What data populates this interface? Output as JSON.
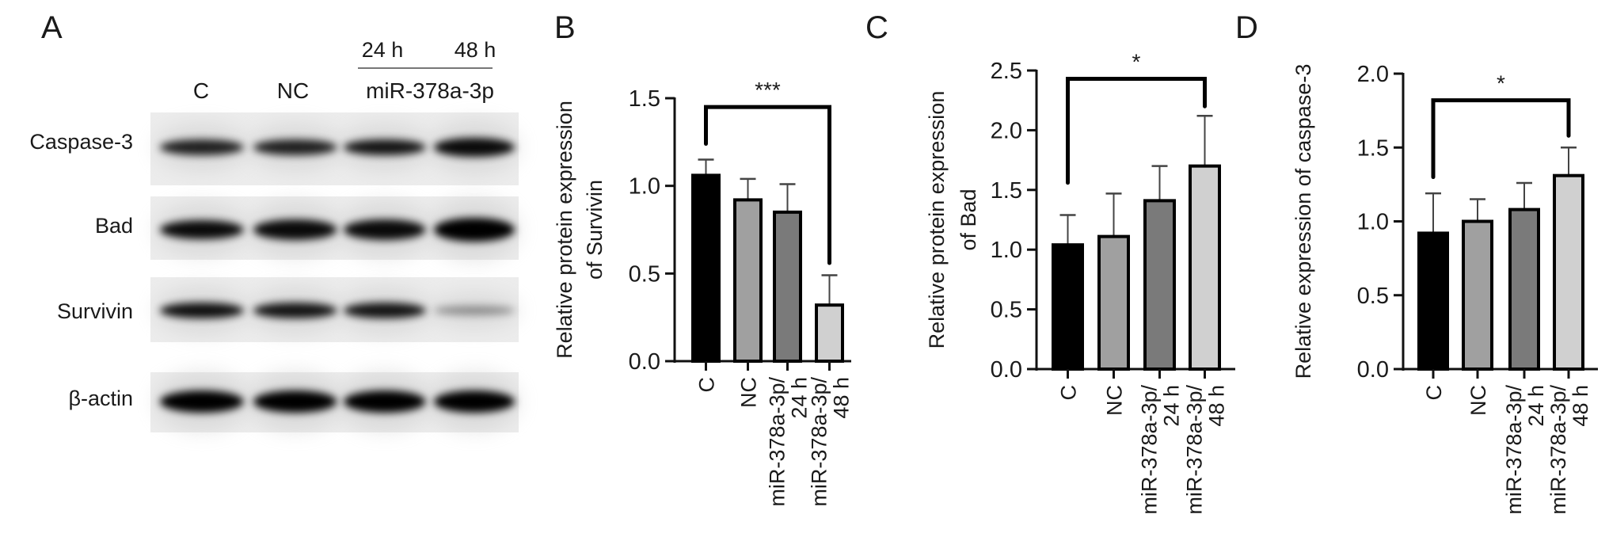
{
  "panels": {
    "a": "A",
    "b": "B",
    "c": "C",
    "d": "D"
  },
  "blot": {
    "time_labels": [
      "24 h",
      "48 h"
    ],
    "lane_labels": [
      "C",
      "NC",
      "miR-378a-3p"
    ],
    "rows": [
      "Caspase-3",
      "Bad",
      "Survivin",
      "β-actin"
    ]
  },
  "colors": {
    "C": "#000000",
    "NC": "#a0a0a0",
    "miR_24h": "#7a7a7a",
    "miR_48h": "#d0d0d0"
  },
  "chart_data": [
    {
      "type": "bar",
      "panel": "B",
      "ylabel": [
        "Relative protein expression",
        "of Survivin"
      ],
      "categories": [
        [
          "C"
        ],
        [
          "NC"
        ],
        [
          "miR-378a-3p/",
          "24 h"
        ],
        [
          "miR-378a-3p/",
          "48 h"
        ]
      ],
      "values": [
        1.06,
        0.92,
        0.85,
        0.32
      ],
      "error_upper": [
        1.15,
        1.04,
        1.01,
        0.49
      ],
      "ylim": [
        0,
        1.5
      ],
      "yticks": [
        "0.0",
        "0.5",
        "1.0",
        "1.5"
      ],
      "significance": {
        "from": 0,
        "to": 3,
        "y": 1.45,
        "label": "***"
      }
    },
    {
      "type": "bar",
      "panel": "C",
      "ylabel": [
        "Relative protein expression",
        "of Bad"
      ],
      "categories": [
        [
          "C"
        ],
        [
          "NC"
        ],
        [
          "miR-378a-3p/",
          "24 h"
        ],
        [
          "miR-378a-3p/",
          "48 h"
        ]
      ],
      "values": [
        1.04,
        1.11,
        1.41,
        1.7
      ],
      "error_upper": [
        1.29,
        1.47,
        1.7,
        2.12
      ],
      "ylim": [
        0,
        2.5
      ],
      "yticks": [
        "0.0",
        "0.5",
        "1.0",
        "1.5",
        "2.0",
        "2.5"
      ],
      "significance": {
        "from": 0,
        "to": 3,
        "y": 2.43,
        "label": "*"
      }
    },
    {
      "type": "bar",
      "panel": "D",
      "ylabel": [
        "Relative expression of caspase-3"
      ],
      "categories": [
        [
          "C"
        ],
        [
          "NC"
        ],
        [
          "miR-378a-3p/",
          "24 h"
        ],
        [
          "miR-378a-3p/",
          "48 h"
        ]
      ],
      "values": [
        0.92,
        1.0,
        1.08,
        1.31
      ],
      "error_upper": [
        1.19,
        1.15,
        1.26,
        1.5
      ],
      "ylim": [
        0,
        2.0
      ],
      "yticks": [
        "0.0",
        "0.5",
        "1.0",
        "1.5",
        "2.0"
      ],
      "significance": {
        "from": 0,
        "to": 3,
        "y": 1.82,
        "label": "*"
      }
    }
  ]
}
